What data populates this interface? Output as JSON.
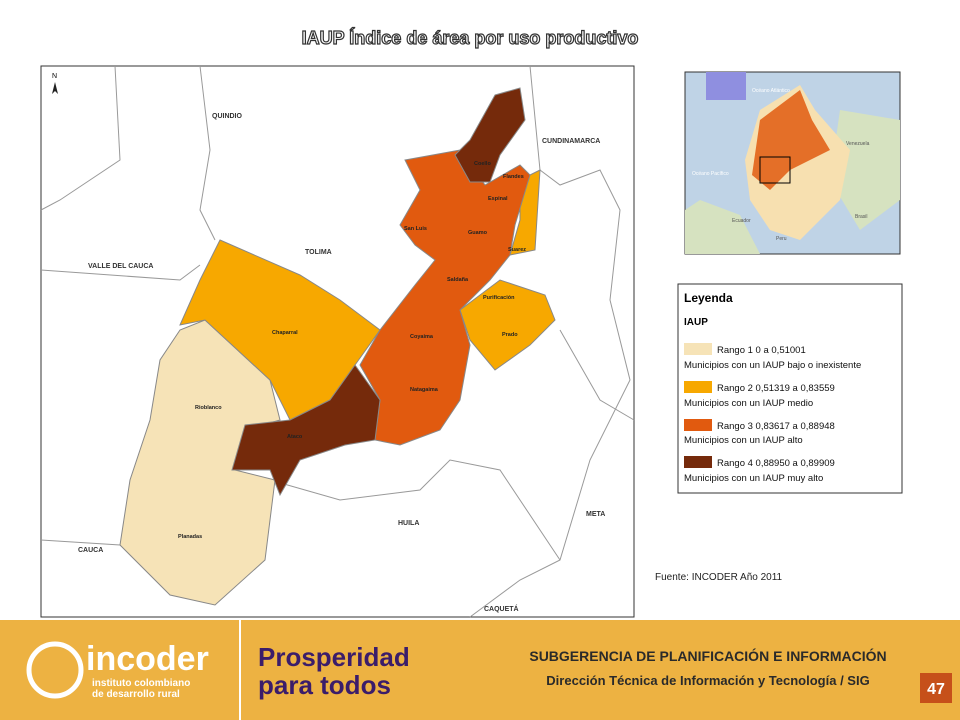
{
  "title": "IAUP Índice de área por uso productivo",
  "map": {
    "north": "N",
    "departments": [
      "QUINDIO",
      "CUNDINAMARCA",
      "TOLIMA",
      "VALLE DEL CAUCA",
      "HUILA",
      "META",
      "CAUCA",
      "CAQUETÁ"
    ],
    "municipalities": [
      "Coello",
      "Flandes",
      "Espinal",
      "San Luis",
      "Guamo",
      "Suarez",
      "Saldaña",
      "Purificación",
      "Chaparral",
      "Coyaima",
      "Prado",
      "Rioblanco",
      "Natagaima",
      "Ataco",
      "Planadas"
    ]
  },
  "inset": {
    "labels": [
      "Océano Atlántico",
      "Venezuela",
      "Océano Pacífico",
      "Ecuador",
      "Brasil",
      "Peru"
    ]
  },
  "legend": {
    "title": "Leyenda",
    "subtitle": "IAUP",
    "items": [
      {
        "range": "Rango 1  0 a 0,51001",
        "description": "Municipios con un IAUP bajo o inexistente"
      },
      {
        "range": "Rango 2  0,51319 a 0,83559",
        "description": "Municipios con un IAUP medio"
      },
      {
        "range": "Rango 3  0,83617 a 0,88948",
        "description": "Municipios con un IAUP alto"
      },
      {
        "range": "Rango 4  0,88950 a 0,89909",
        "description": "Municipios con un IAUP muy alto"
      }
    ]
  },
  "source": "Fuente: INCODER  Año 2011",
  "footer": {
    "logo1": "incoder",
    "logo1_sub1": "instituto colombiano",
    "logo1_sub2": "de desarrollo rural",
    "logo2_line1": "Prosperidad",
    "logo2_line2": "para todos",
    "line1": "SUBGERENCIA DE PLANIFICACIÓN E INFORMACIÓN",
    "line2": "Dirección Técnica de Información y Tecnología / SIG",
    "page": "47"
  }
}
